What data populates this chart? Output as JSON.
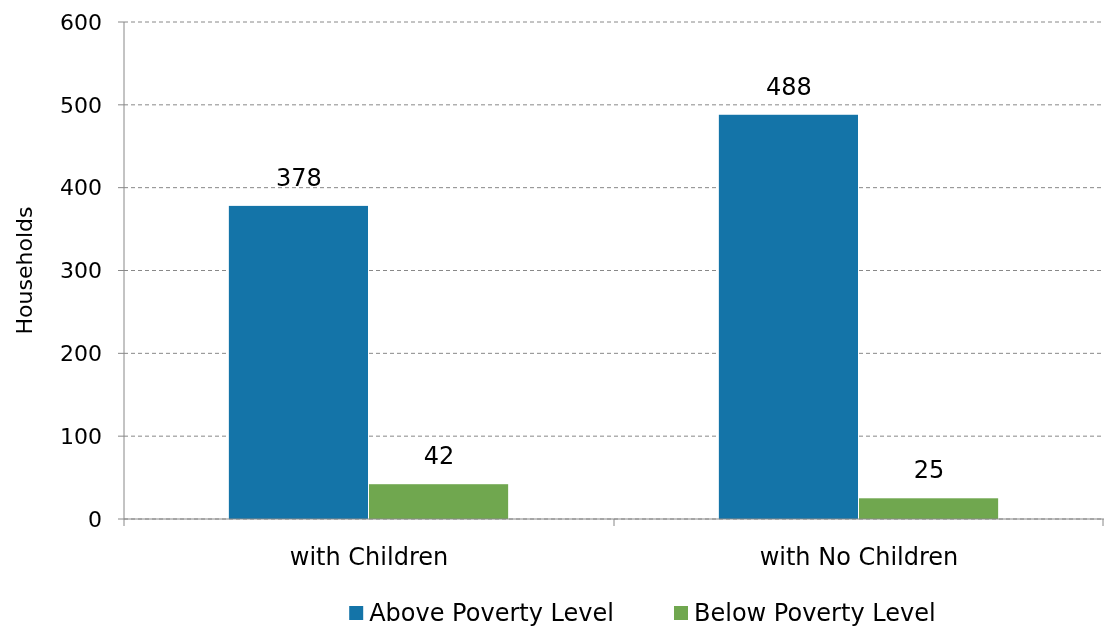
{
  "chart_data": {
    "type": "bar",
    "ylabel": "Households",
    "categories": [
      "with Children",
      "with No Children"
    ],
    "series": [
      {
        "name": "Above Poverty Level",
        "color": "#1474a8",
        "values": [
          378,
          488
        ]
      },
      {
        "name": "Below Poverty Level",
        "color": "#70a74f",
        "values": [
          42,
          25
        ]
      }
    ],
    "ylim": [
      0,
      600
    ],
    "yticks": [
      0,
      100,
      200,
      300,
      400,
      500,
      600
    ],
    "grid": "y",
    "legend": "bottom",
    "data_labels": true
  }
}
